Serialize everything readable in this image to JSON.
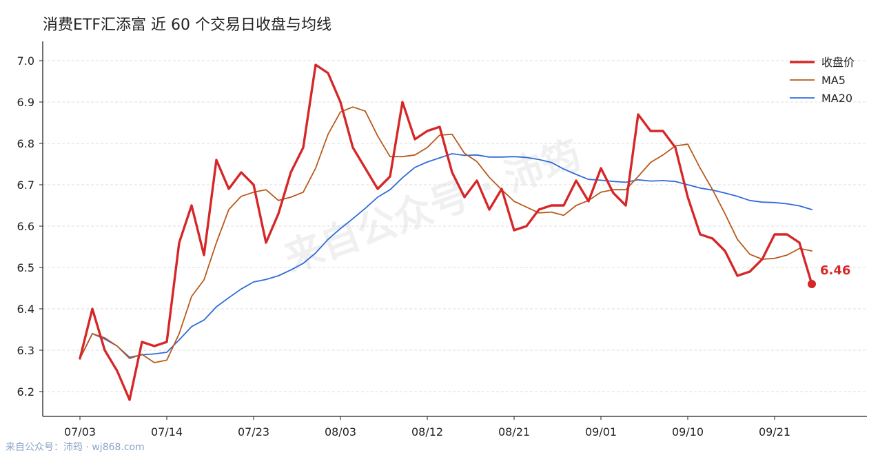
{
  "title": "消费ETF汇添富 近 60 个交易日收盘与均线",
  "watermark": "来自公众号 · 沛筠",
  "footer": "来自公众号：沛筠 · wj868.com",
  "chart_data": {
    "type": "line",
    "title": "消费ETF汇添富 近 60 个交易日收盘与均线",
    "xlabel": "",
    "ylabel": "",
    "ylim": [
      6.14,
      7.04
    ],
    "yticks": [
      6.2,
      6.3,
      6.4,
      6.5,
      6.6,
      6.7,
      6.8,
      6.9,
      7.0
    ],
    "grid": true,
    "legend_position": "top-right",
    "xtick_labels": [
      {
        "index": 0,
        "label": "07/03"
      },
      {
        "index": 7,
        "label": "07/14"
      },
      {
        "index": 14,
        "label": "07/23"
      },
      {
        "index": 21,
        "label": "08/03"
      },
      {
        "index": 28,
        "label": "08/12"
      },
      {
        "index": 35,
        "label": "08/21"
      },
      {
        "index": 42,
        "label": "09/01"
      },
      {
        "index": 49,
        "label": "09/10"
      },
      {
        "index": 56,
        "label": "09/21"
      }
    ],
    "series": [
      {
        "name": "收盘价",
        "color": "#d62728",
        "values": [
          6.28,
          6.4,
          6.3,
          6.25,
          6.18,
          6.32,
          6.31,
          6.32,
          6.56,
          6.65,
          6.53,
          6.76,
          6.69,
          6.73,
          6.7,
          6.56,
          6.63,
          6.73,
          6.79,
          6.99,
          6.97,
          6.9,
          6.79,
          6.74,
          6.69,
          6.72,
          6.9,
          6.81,
          6.83,
          6.84,
          6.73,
          6.67,
          6.71,
          6.64,
          6.69,
          6.59,
          6.6,
          6.64,
          6.65,
          6.65,
          6.71,
          6.66,
          6.74,
          6.68,
          6.65,
          6.87,
          6.83,
          6.83,
          6.79,
          6.67,
          6.58,
          6.57,
          6.54,
          6.48,
          6.49,
          6.52,
          6.58,
          6.58,
          6.56,
          6.46
        ]
      },
      {
        "name": "MA5",
        "color": "#b8591a",
        "values": [
          6.28,
          6.34,
          6.33,
          6.31,
          6.28,
          6.29,
          6.27,
          6.276,
          6.34,
          6.43,
          6.47,
          6.56,
          6.64,
          6.672,
          6.682,
          6.688,
          6.662,
          6.67,
          6.682,
          6.74,
          6.822,
          6.876,
          6.888,
          6.878,
          6.818,
          6.768,
          6.768,
          6.772,
          6.79,
          6.82,
          6.822,
          6.776,
          6.756,
          6.718,
          6.688,
          6.66,
          6.646,
          6.632,
          6.634,
          6.626,
          6.65,
          6.662,
          6.682,
          6.688,
          6.688,
          6.72,
          6.754,
          6.772,
          6.794,
          6.798,
          6.74,
          6.688,
          6.63,
          6.568,
          6.532,
          6.52,
          6.522,
          6.53,
          6.546,
          6.54
        ]
      },
      {
        "name": "MA20",
        "color": "#2f6bd9",
        "values": [
          6.28,
          6.34,
          6.327,
          6.31,
          6.283,
          6.289,
          6.291,
          6.295,
          6.325,
          6.357,
          6.373,
          6.405,
          6.427,
          6.448,
          6.465,
          6.471,
          6.48,
          6.494,
          6.51,
          6.535,
          6.568,
          6.594,
          6.618,
          6.643,
          6.67,
          6.688,
          6.717,
          6.742,
          6.755,
          6.765,
          6.775,
          6.771,
          6.772,
          6.767,
          6.767,
          6.768,
          6.766,
          6.761,
          6.754,
          6.738,
          6.725,
          6.713,
          6.711,
          6.708,
          6.706,
          6.712,
          6.709,
          6.71,
          6.708,
          6.7,
          6.692,
          6.687,
          6.68,
          6.672,
          6.662,
          6.658,
          6.657,
          6.654,
          6.649,
          6.64
        ]
      }
    ],
    "last_value_label": "6.46"
  }
}
